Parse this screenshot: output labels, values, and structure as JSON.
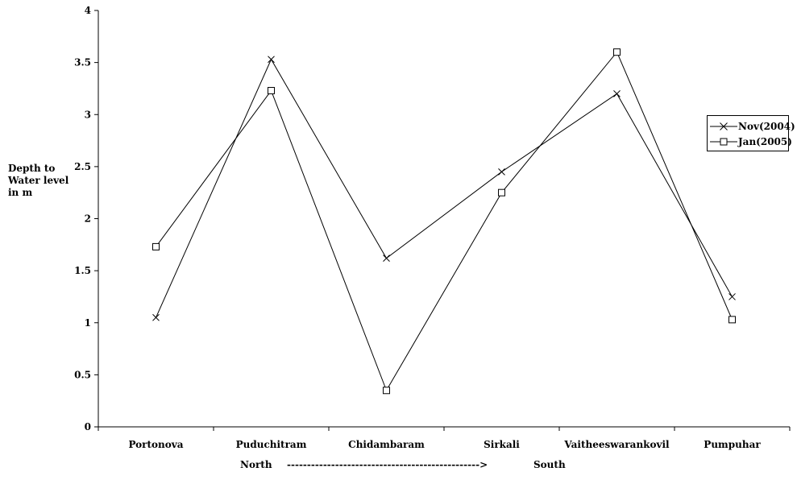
{
  "chart_data": {
    "type": "line",
    "categories": [
      "Portonova",
      "Puduchitram",
      "Chidambaram",
      "Sirkali",
      "Vaitheeswarankovil",
      "Pumpuhar"
    ],
    "series": [
      {
        "name": "Nov(2004)",
        "marker": "x",
        "values": [
          1.05,
          3.53,
          1.62,
          2.45,
          3.2,
          1.25
        ]
      },
      {
        "name": "Jan(2005)",
        "marker": "square",
        "values": [
          1.73,
          3.23,
          0.35,
          2.25,
          3.6,
          1.03
        ]
      }
    ],
    "title": "",
    "ylabel_lines": [
      "Depth to",
      "Water level",
      "in m"
    ],
    "xlabel": {
      "left": "North",
      "arrow": "------------------------------------------------>",
      "right": "South"
    },
    "ylim": [
      0,
      4
    ],
    "yticks": [
      "0",
      "0.5",
      "1",
      "1.5",
      "2",
      "2.5",
      "3",
      "3.5",
      "4"
    ],
    "grid": false,
    "legend_position": "right",
    "line_color": "#000000"
  }
}
